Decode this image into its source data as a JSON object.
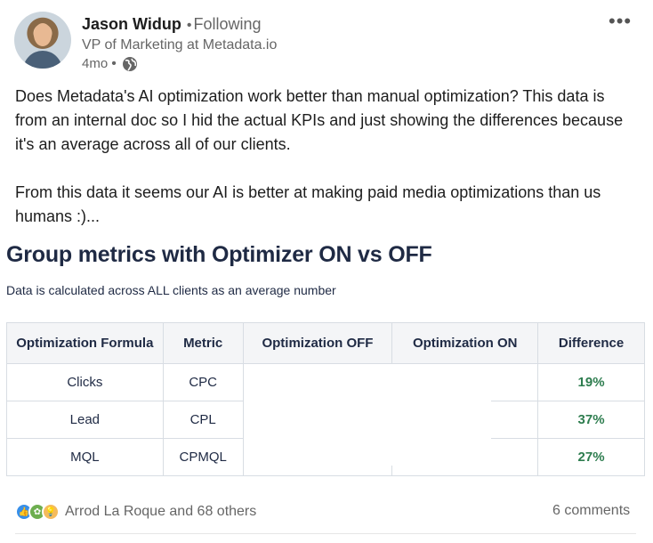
{
  "author": {
    "name": "Jason Widup",
    "connection": "Following",
    "headline": "VP of Marketing at Metadata.io",
    "time_ago": "4mo",
    "visibility_icon": "globe-icon"
  },
  "post": {
    "paragraphs": [
      "Does Metadata's AI optimization work better than manual optimization? This data is from an internal doc so I hid the actual KPIs and just showing the differences because it's an average across all of our clients.",
      "From this data it seems our AI is better at making paid media optimizations than us humans :)..."
    ]
  },
  "image": {
    "title": "Group metrics with Optimizer ON vs OFF",
    "subtitle": "Data is calculated across ALL clients as an average number",
    "table": {
      "headers": [
        "Optimization Formula",
        "Metric",
        "Optimization OFF",
        "Optimization ON",
        "Difference"
      ],
      "rows": [
        {
          "formula": "Clicks",
          "metric": "CPC",
          "off": "",
          "on": "",
          "difference": "19%"
        },
        {
          "formula": "Lead",
          "metric": "CPL",
          "off": "",
          "on": "",
          "difference": "37%"
        },
        {
          "formula": "MQL",
          "metric": "CPMQL",
          "off": "",
          "on": "",
          "difference": "27%"
        }
      ]
    },
    "colors": {
      "title": "#1f2a44",
      "difference": "#2e7d4f",
      "header_bg": "#f4f5f7"
    }
  },
  "social": {
    "reaction_icons": [
      "like-icon",
      "celebrate-icon",
      "insightful-icon"
    ],
    "reactions_text": "Arrod La Roque and 68 others",
    "comments_text": "6 comments"
  }
}
